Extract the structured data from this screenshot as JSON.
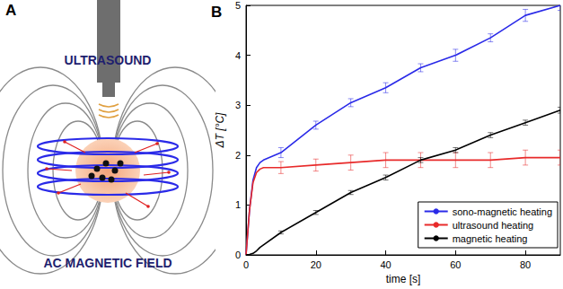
{
  "diagram": {
    "panel_label": "A",
    "labels": [
      "ULTRASOUND",
      "AC MAGNETIC FIELD"
    ]
  },
  "chart_data": {
    "type": "line",
    "title": "B",
    "x_label": "time [s]",
    "y_label": "ΔT [°C]",
    "xlim": [
      0,
      90
    ],
    "xticks": [
      0,
      20,
      40,
      60,
      80
    ],
    "ylim": [
      0,
      5
    ],
    "yticks": [
      0,
      1,
      2,
      3,
      4,
      5
    ],
    "grid": false,
    "legend": "lower right",
    "x": [
      0,
      1,
      2,
      3,
      4,
      5,
      10,
      20,
      30,
      40,
      50,
      60,
      70,
      80,
      90
    ],
    "series": [
      {
        "name": "sono-magnetic heating",
        "color": "#2a2ae8",
        "values": [
          0,
          0.9,
          1.5,
          1.75,
          1.85,
          1.9,
          2.05,
          2.6,
          3.05,
          3.35,
          3.75,
          4.0,
          4.35,
          4.8,
          5.0
        ],
        "errors": [
          null,
          null,
          null,
          null,
          null,
          null,
          0.1,
          0.08,
          0.08,
          0.1,
          0.08,
          0.12,
          0.08,
          0.12,
          0.1
        ]
      },
      {
        "name": "ultrasound heating",
        "color": "#e82a2a",
        "values": [
          0,
          0.9,
          1.45,
          1.65,
          1.72,
          1.75,
          1.75,
          1.8,
          1.85,
          1.9,
          1.9,
          1.9,
          1.9,
          1.95,
          1.95
        ],
        "errors": [
          null,
          null,
          null,
          null,
          null,
          null,
          0.12,
          0.12,
          0.15,
          0.15,
          0.15,
          0.15,
          0.15,
          0.15,
          0.15
        ]
      },
      {
        "name": "magnetic heating",
        "color": "#000000",
        "values": [
          0,
          0.01,
          0.03,
          0.08,
          0.15,
          0.2,
          0.45,
          0.85,
          1.25,
          1.55,
          1.9,
          2.1,
          2.4,
          2.65,
          2.9
        ],
        "errors": [
          null,
          null,
          null,
          null,
          null,
          null,
          0.03,
          0.04,
          0.04,
          0.05,
          0.05,
          0.05,
          0.05,
          0.05,
          0.06
        ]
      }
    ]
  }
}
